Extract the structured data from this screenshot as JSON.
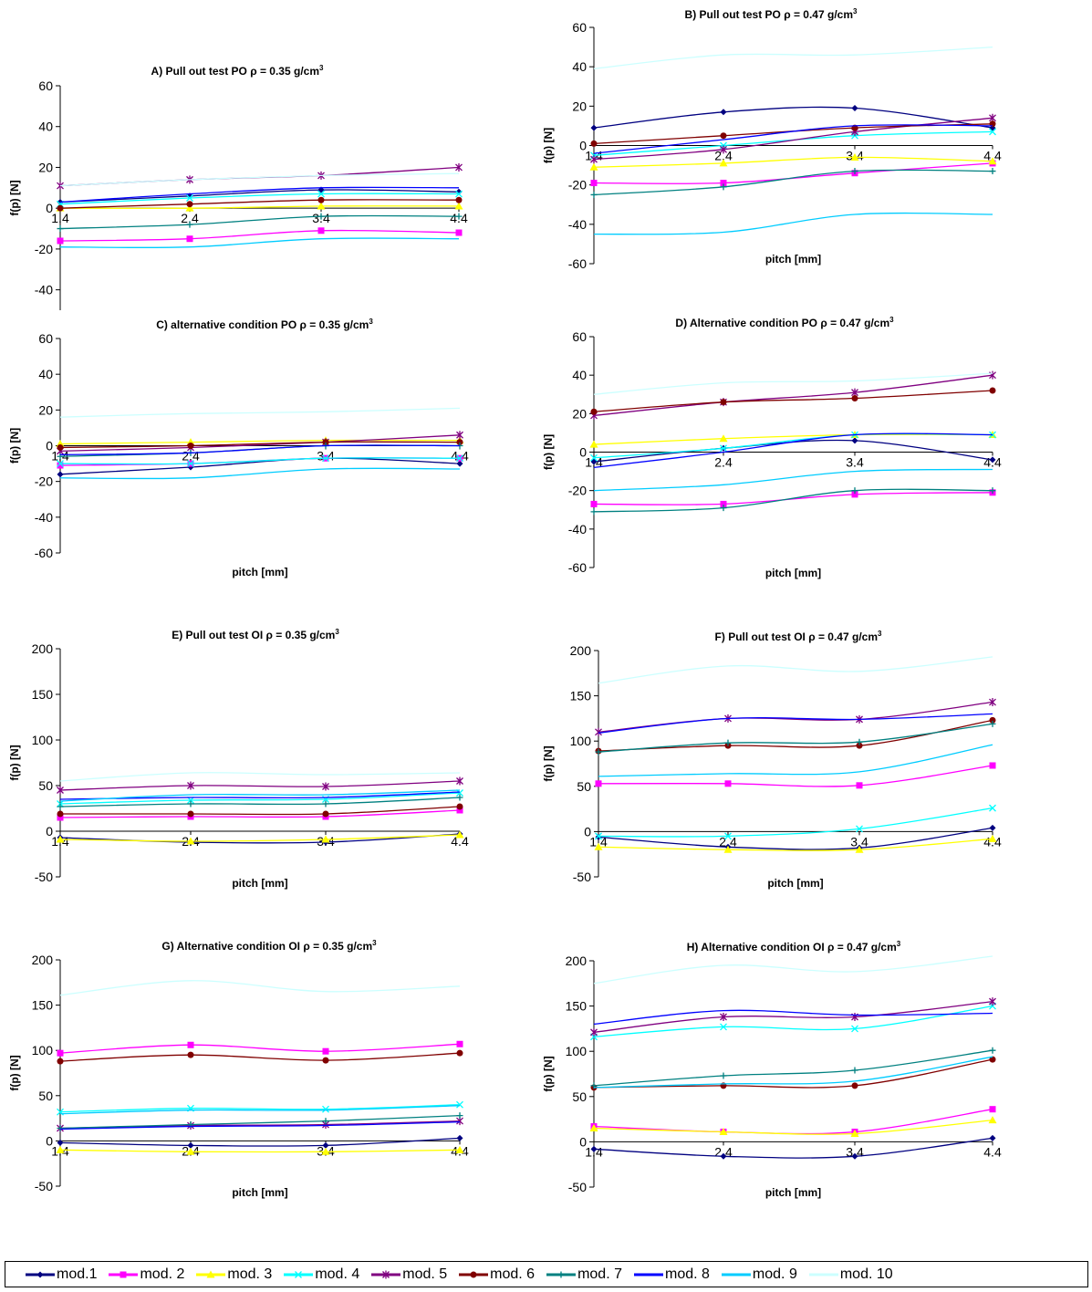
{
  "series_styles": [
    {
      "name": "mod.1",
      "color": "#000080",
      "marker": "diamond"
    },
    {
      "name": "mod. 2",
      "color": "#FF00FF",
      "marker": "square"
    },
    {
      "name": "mod. 3",
      "color": "#FFFF00",
      "marker": "triangle"
    },
    {
      "name": "mod. 4",
      "color": "#00FFFF",
      "marker": "x"
    },
    {
      "name": "mod. 5",
      "color": "#800080",
      "marker": "star"
    },
    {
      "name": "mod. 6",
      "color": "#800000",
      "marker": "circle"
    },
    {
      "name": "mod. 7",
      "color": "#008080",
      "marker": "plus"
    },
    {
      "name": "mod. 8",
      "color": "#0000FF",
      "marker": "none"
    },
    {
      "name": "mod. 9",
      "color": "#00CCFF",
      "marker": "none"
    },
    {
      "name": "mod. 10",
      "color": "#CCFFFF",
      "marker": "none"
    }
  ],
  "chart_data": [
    {
      "type": "line",
      "title_main": "A)  Pull out test PO ρ = 0.35 g/cm",
      "title_sup": "3",
      "xlabel": "",
      "ylabel": "f(p)  [N]",
      "categories": [
        "1.4",
        "2.4",
        "3.4",
        "4.4"
      ],
      "ylim": [
        -50,
        60
      ],
      "yticks": [
        -40,
        -20,
        0,
        20,
        40,
        60
      ],
      "xaxis_at_zero": true,
      "series": [
        {
          "name": "mod.1",
          "values": [
            3,
            6,
            9,
            8
          ]
        },
        {
          "name": "mod. 2",
          "values": [
            -16,
            -15,
            -11,
            -12
          ]
        },
        {
          "name": "mod. 3",
          "values": [
            0,
            0,
            1,
            1
          ]
        },
        {
          "name": "mod. 4",
          "values": [
            2,
            5,
            7,
            7
          ]
        },
        {
          "name": "mod. 5",
          "values": [
            11,
            14,
            16,
            20
          ]
        },
        {
          "name": "mod. 6",
          "values": [
            0,
            2,
            4,
            4
          ]
        },
        {
          "name": "mod. 7",
          "values": [
            -10,
            -8,
            -4,
            -4
          ]
        },
        {
          "name": "mod. 8",
          "values": [
            3,
            7,
            10,
            10
          ]
        },
        {
          "name": "mod. 9",
          "values": [
            -19,
            -19,
            -15,
            -15
          ]
        },
        {
          "name": "mod. 10",
          "values": [
            11,
            14,
            16,
            17
          ]
        }
      ]
    },
    {
      "type": "line",
      "title_main": "B)  Pull out test  PO ρ = 0.47 g/cm",
      "title_sup": "3",
      "xlabel": "pitch  [mm]",
      "ylabel": "f(p)  [N]",
      "categories": [
        "1.4",
        "2.4",
        "3.4",
        "4.4"
      ],
      "ylim": [
        -60,
        60
      ],
      "yticks": [
        -60,
        -40,
        -20,
        0,
        20,
        40,
        60
      ],
      "xaxis_at_zero": true,
      "series": [
        {
          "name": "mod.1",
          "values": [
            9,
            17,
            19,
            9
          ]
        },
        {
          "name": "mod. 2",
          "values": [
            -19,
            -19,
            -14,
            -9
          ]
        },
        {
          "name": "mod. 3",
          "values": [
            -11,
            -9,
            -6,
            -8
          ]
        },
        {
          "name": "mod. 4",
          "values": [
            -5,
            0,
            5,
            7
          ]
        },
        {
          "name": "mod. 5",
          "values": [
            -7,
            -2,
            7,
            14
          ]
        },
        {
          "name": "mod. 6",
          "values": [
            1,
            5,
            9,
            11
          ]
        },
        {
          "name": "mod. 7",
          "values": [
            -25,
            -21,
            -13,
            -13
          ]
        },
        {
          "name": "mod. 8",
          "values": [
            -4,
            3,
            10,
            10
          ]
        },
        {
          "name": "mod. 9",
          "values": [
            -45,
            -44,
            -35,
            -35
          ]
        },
        {
          "name": "mod. 10",
          "values": [
            39,
            46,
            46,
            50
          ]
        }
      ]
    },
    {
      "type": "line",
      "title_main": "C)  alternative condition PO ρ = 0.35 g/cm",
      "title_sup": "3",
      "xlabel": "pitch  [mm]",
      "ylabel": "f(p)  [N]",
      "categories": [
        "1.4",
        "2.4",
        "3.4",
        "4.4"
      ],
      "ylim": [
        -60,
        60
      ],
      "yticks": [
        -60,
        -40,
        -20,
        0,
        20,
        40,
        60
      ],
      "xaxis_at_zero": true,
      "series": [
        {
          "name": "mod.1",
          "values": [
            -16,
            -12,
            -7,
            -10
          ]
        },
        {
          "name": "mod. 2",
          "values": [
            -11,
            -10,
            -7,
            -7
          ]
        },
        {
          "name": "mod. 3",
          "values": [
            1,
            2,
            3,
            3
          ]
        },
        {
          "name": "mod. 4",
          "values": [
            -10,
            -10,
            -7,
            -7
          ]
        },
        {
          "name": "mod. 5",
          "values": [
            -3,
            -1,
            2,
            6
          ]
        },
        {
          "name": "mod. 6",
          "values": [
            -1,
            0,
            2,
            2
          ]
        },
        {
          "name": "mod. 7",
          "values": [
            -6,
            -4,
            0,
            0
          ]
        },
        {
          "name": "mod. 8",
          "values": [
            -5,
            -4,
            0,
            0
          ]
        },
        {
          "name": "mod. 9",
          "values": [
            -18,
            -18,
            -13,
            -13
          ]
        },
        {
          "name": "mod. 10",
          "values": [
            16,
            18,
            19,
            21
          ]
        }
      ]
    },
    {
      "type": "line",
      "title_main": "D)  Alternative condition PO ρ = 0.47 g/cm",
      "title_sup": "3",
      "xlabel": "pitch [mm]",
      "ylabel": "f(p)  [N]",
      "categories": [
        "1.4",
        "2.4",
        "3.4",
        "4.4"
      ],
      "ylim": [
        -60,
        60
      ],
      "yticks": [
        -60,
        -40,
        -20,
        0,
        20,
        40,
        60
      ],
      "xaxis_at_zero": true,
      "series": [
        {
          "name": "mod.1",
          "values": [
            -5,
            2,
            6,
            -4
          ]
        },
        {
          "name": "mod. 2",
          "values": [
            -27,
            -27,
            -22,
            -21
          ]
        },
        {
          "name": "mod. 3",
          "values": [
            4,
            7,
            9,
            9
          ]
        },
        {
          "name": "mod. 4",
          "values": [
            -3,
            2,
            9,
            9
          ]
        },
        {
          "name": "mod. 5",
          "values": [
            19,
            26,
            31,
            40
          ]
        },
        {
          "name": "mod. 6",
          "values": [
            21,
            26,
            28,
            32
          ]
        },
        {
          "name": "mod. 7",
          "values": [
            -31,
            -29,
            -20,
            -20
          ]
        },
        {
          "name": "mod. 8",
          "values": [
            -8,
            0,
            9,
            9
          ]
        },
        {
          "name": "mod. 9",
          "values": [
            -20,
            -17,
            -10,
            -9
          ]
        },
        {
          "name": "mod. 10",
          "values": [
            30,
            36,
            37,
            41
          ]
        }
      ]
    },
    {
      "type": "line",
      "title_main": "E)  Pull out test  OI  ρ = 0.35 g/cm",
      "title_sup": "3",
      "xlabel": "pitch  [mm]",
      "ylabel": "f(p)  [N]",
      "categories": [
        "1.4",
        "2.4",
        "3.4",
        "4.4"
      ],
      "ylim": [
        -50,
        200
      ],
      "yticks": [
        -50,
        0,
        50,
        100,
        150,
        200
      ],
      "xaxis_at_zero": true,
      "series": [
        {
          "name": "mod.1",
          "values": [
            -7,
            -12,
            -12,
            -3
          ]
        },
        {
          "name": "mod. 2",
          "values": [
            15,
            16,
            16,
            23
          ]
        },
        {
          "name": "mod. 3",
          "values": [
            -9,
            -11,
            -9,
            -4
          ]
        },
        {
          "name": "mod. 4",
          "values": [
            30,
            34,
            35,
            42
          ]
        },
        {
          "name": "mod. 5",
          "values": [
            45,
            50,
            49,
            55
          ]
        },
        {
          "name": "mod. 6",
          "values": [
            19,
            19,
            19,
            27
          ]
        },
        {
          "name": "mod. 7",
          "values": [
            27,
            30,
            30,
            37
          ]
        },
        {
          "name": "mod. 8",
          "values": [
            35,
            37,
            37,
            43
          ]
        },
        {
          "name": "mod. 9",
          "values": [
            33,
            40,
            40,
            45
          ]
        },
        {
          "name": "mod. 10",
          "values": [
            55,
            64,
            62,
            64
          ]
        }
      ]
    },
    {
      "type": "line",
      "title_main": "F)  Pull out test OI  ρ = 0.47 g/cm",
      "title_sup": "3",
      "xlabel": "pitch  [mm]",
      "ylabel": "f(p)  [N]",
      "categories": [
        "1.4",
        "2.4",
        "3.4",
        "4.4"
      ],
      "ylim": [
        -50,
        200
      ],
      "yticks": [
        -50,
        0,
        50,
        100,
        150,
        200
      ],
      "xaxis_at_zero": true,
      "series": [
        {
          "name": "mod.1",
          "values": [
            -6,
            -17,
            -18,
            4
          ]
        },
        {
          "name": "mod. 2",
          "values": [
            53,
            53,
            51,
            73
          ]
        },
        {
          "name": "mod. 3",
          "values": [
            -17,
            -20,
            -20,
            -8
          ]
        },
        {
          "name": "mod. 4",
          "values": [
            -5,
            -5,
            3,
            26
          ]
        },
        {
          "name": "mod. 5",
          "values": [
            110,
            125,
            124,
            143
          ]
        },
        {
          "name": "mod. 6",
          "values": [
            89,
            95,
            95,
            123
          ]
        },
        {
          "name": "mod. 7",
          "values": [
            88,
            98,
            99,
            119
          ]
        },
        {
          "name": "mod. 8",
          "values": [
            109,
            125,
            124,
            130
          ]
        },
        {
          "name": "mod. 9",
          "values": [
            61,
            64,
            66,
            96
          ]
        },
        {
          "name": "mod. 10",
          "values": [
            164,
            183,
            177,
            193
          ]
        }
      ]
    },
    {
      "type": "line",
      "title_main": "G)  Alternative condition OI  ρ = 0.35 g/cm",
      "title_sup": "3",
      "xlabel": "pitch  [mm]",
      "ylabel": "f(p) [N]",
      "categories": [
        "1.4",
        "2.4",
        "3.4",
        "4.4"
      ],
      "ylim": [
        -50,
        200
      ],
      "yticks": [
        -50,
        0,
        50,
        100,
        150,
        200
      ],
      "xaxis_at_zero": true,
      "series": [
        {
          "name": "mod.1",
          "values": [
            -2,
            -5,
            -5,
            3
          ]
        },
        {
          "name": "mod. 2",
          "values": [
            97,
            106,
            99,
            107
          ]
        },
        {
          "name": "mod. 3",
          "values": [
            -10,
            -12,
            -12,
            -10
          ]
        },
        {
          "name": "mod. 4",
          "values": [
            32,
            36,
            35,
            40
          ]
        },
        {
          "name": "mod. 5",
          "values": [
            14,
            17,
            18,
            22
          ]
        },
        {
          "name": "mod. 6",
          "values": [
            88,
            95,
            89,
            97
          ]
        },
        {
          "name": "mod. 7",
          "values": [
            14,
            18,
            22,
            28
          ]
        },
        {
          "name": "mod. 8",
          "values": [
            13,
            16,
            17,
            21
          ]
        },
        {
          "name": "mod. 9",
          "values": [
            30,
            34,
            34,
            39
          ]
        },
        {
          "name": "mod. 10",
          "values": [
            161,
            177,
            165,
            171
          ]
        }
      ]
    },
    {
      "type": "line",
      "title_main": "H)  Alternative condition OI  ρ = 0.47 g/cm",
      "title_sup": "3",
      "xlabel": "pitch  [mm]",
      "ylabel": "f(p) [N]",
      "categories": [
        "1.4",
        "2.4",
        "3.4",
        "4.4"
      ],
      "ylim": [
        -50,
        200
      ],
      "yticks": [
        -50,
        0,
        50,
        100,
        150,
        200
      ],
      "xaxis_at_zero": true,
      "series": [
        {
          "name": "mod.1",
          "values": [
            -8,
            -16,
            -16,
            4
          ]
        },
        {
          "name": "mod. 2",
          "values": [
            17,
            11,
            11,
            36
          ]
        },
        {
          "name": "mod. 3",
          "values": [
            15,
            11,
            9,
            24
          ]
        },
        {
          "name": "mod. 4",
          "values": [
            116,
            127,
            125,
            150
          ]
        },
        {
          "name": "mod. 5",
          "values": [
            121,
            138,
            138,
            155
          ]
        },
        {
          "name": "mod. 6",
          "values": [
            60,
            62,
            62,
            91
          ]
        },
        {
          "name": "mod. 7",
          "values": [
            62,
            73,
            79,
            101
          ]
        },
        {
          "name": "mod. 8",
          "values": [
            130,
            145,
            140,
            142
          ]
        },
        {
          "name": "mod. 9",
          "values": [
            60,
            64,
            67,
            94
          ]
        },
        {
          "name": "mod. 10",
          "values": [
            175,
            195,
            188,
            205
          ]
        }
      ]
    }
  ]
}
